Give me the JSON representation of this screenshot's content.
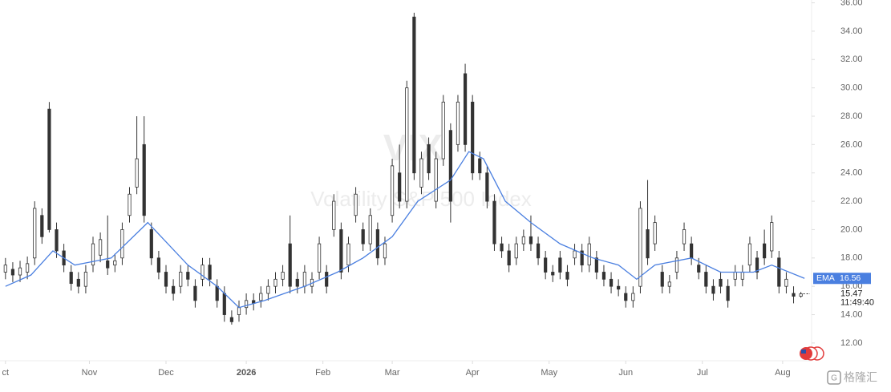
{
  "chart_data": {
    "type": "candlestick",
    "watermark_symbol": "VIX",
    "watermark_name": "Volatility S&P 500 Index",
    "xlim": [
      -1.5,
      220.5
    ],
    "ylim": [
      10.75,
      36.2
    ],
    "xticks": [
      {
        "value": 0,
        "label": "ct"
      },
      {
        "value": 23,
        "label": "Nov"
      },
      {
        "value": 44,
        "label": "Dec"
      },
      {
        "value": 66,
        "label": "2026"
      },
      {
        "value": 87,
        "label": "Feb"
      },
      {
        "value": 106,
        "label": "Mar"
      },
      {
        "value": 128,
        "label": "Apr"
      },
      {
        "value": 149,
        "label": "May"
      },
      {
        "value": 170,
        "label": "Jun"
      },
      {
        "value": 191,
        "label": "Jul"
      },
      {
        "value": 213,
        "label": "Aug"
      }
    ],
    "yticks": [
      {
        "value": 12,
        "label": "12.00"
      },
      {
        "value": 14,
        "label": "14.00"
      },
      {
        "value": 16,
        "label": "16.00"
      },
      {
        "value": 18,
        "label": "18.00"
      },
      {
        "value": 20,
        "label": "20.00"
      },
      {
        "value": 22,
        "label": "22.00"
      },
      {
        "value": 24,
        "label": "24.00"
      },
      {
        "value": 26,
        "label": "26.00"
      },
      {
        "value": 28,
        "label": "28.00"
      },
      {
        "value": 30,
        "label": "30.00"
      },
      {
        "value": 32,
        "label": "32.00"
      },
      {
        "value": 34,
        "label": "34.00"
      },
      {
        "value": 36,
        "label": "36.00"
      }
    ],
    "up_color": "#ffffff",
    "down_color": "#333333",
    "outline_color": "#333333",
    "x": [
      0,
      2,
      4,
      6,
      8,
      10,
      12,
      14,
      16,
      18,
      20,
      22,
      24,
      26,
      28,
      30,
      32,
      34,
      36,
      38,
      40,
      42,
      44,
      46,
      48,
      50,
      52,
      54,
      56,
      58,
      60,
      62,
      64,
      66,
      68,
      70,
      72,
      74,
      76,
      78,
      80,
      82,
      84,
      86,
      88,
      90,
      92,
      94,
      96,
      98,
      100,
      102,
      104,
      106,
      108,
      110,
      112,
      114,
      116,
      118,
      120,
      122,
      124,
      126,
      128,
      130,
      132,
      134,
      136,
      138,
      140,
      142,
      144,
      146,
      148,
      150,
      152,
      154,
      156,
      158,
      160,
      162,
      164,
      166,
      168,
      170,
      172,
      174,
      176,
      178,
      180,
      182,
      184,
      186,
      188,
      190,
      192,
      194,
      196,
      198,
      200,
      202,
      204,
      206,
      208,
      210,
      212,
      214,
      216,
      218
    ],
    "open": [
      17,
      17.2,
      16.8,
      17,
      18,
      21,
      28.5,
      20,
      18.5,
      17,
      16.5,
      16,
      17.5,
      18.2,
      17.8,
      17.5,
      18,
      21,
      23,
      26,
      20,
      18,
      17,
      16,
      16,
      17,
      16,
      16.5,
      17.5,
      16,
      15.5,
      13.8,
      14,
      14.5,
      15,
      15,
      15.5,
      16,
      16.5,
      19,
      16.5,
      16,
      16,
      17,
      17,
      20,
      20,
      17.5,
      21,
      20,
      19,
      20,
      18,
      21,
      24,
      22,
      35,
      23,
      26,
      22,
      25,
      27,
      26,
      31,
      29,
      25,
      24,
      22,
      19,
      18.5,
      18,
      19,
      19.5,
      19,
      18,
      17,
      18,
      17,
      18,
      18.5,
      17.5,
      18,
      17,
      16.5,
      16,
      15.5,
      15,
      16,
      20,
      19,
      17,
      16,
      17,
      19,
      19,
      17.5,
      17,
      16,
      16.5,
      16,
      16.5,
      16.5,
      17.5,
      18,
      19,
      18.5,
      18,
      16,
      15.5,
      15.3
    ],
    "high": [
      18,
      17.7,
      17.8,
      18.1,
      22,
      21.5,
      29,
      20.5,
      19,
      17.5,
      17,
      17.5,
      19.5,
      19.8,
      21,
      18.3,
      20.5,
      23,
      28,
      28,
      20.5,
      18.5,
      17.5,
      16.5,
      17.5,
      17.5,
      16.5,
      18,
      18,
      16.5,
      16,
      14.3,
      15,
      15.5,
      15.5,
      16,
      16.5,
      17,
      17.5,
      21,
      17,
      17.5,
      17,
      19.5,
      17.5,
      22.5,
      20.5,
      19.5,
      23,
      20.5,
      21.5,
      20.5,
      19.5,
      25,
      26,
      30.5,
      35.3,
      25.5,
      26.5,
      25.5,
      29.5,
      27.5,
      29.5,
      31.7,
      29.5,
      25.5,
      24.5,
      22.5,
      19.5,
      19,
      19.5,
      20,
      21,
      19.5,
      18.5,
      17.5,
      18.5,
      17.5,
      19,
      19,
      19.5,
      18.5,
      17.5,
      17,
      16.5,
      16,
      16,
      22,
      23.5,
      21,
      17.5,
      16.8,
      18.5,
      20.5,
      19.5,
      18,
      17.5,
      16.5,
      17,
      16.5,
      17.5,
      17.5,
      19.5,
      18.5,
      20,
      21,
      18.5,
      17,
      16,
      15.6
    ],
    "low": [
      16.5,
      16.3,
      16.3,
      16.5,
      17.5,
      19,
      19.8,
      18,
      17,
      15.7,
      15.5,
      15.5,
      17,
      17.7,
      16.8,
      17,
      17.5,
      20.5,
      22.5,
      20.5,
      17.5,
      16.5,
      15.5,
      15,
      15.5,
      16,
      14.5,
      16,
      16,
      14.5,
      13.5,
      13.3,
      13.5,
      14,
      14.3,
      14.5,
      15,
      15.5,
      16,
      15.5,
      15.5,
      15.5,
      15.5,
      16.5,
      15.5,
      19.5,
      16.5,
      17,
      20.5,
      18.5,
      18.5,
      17.5,
      17.5,
      20.5,
      21.5,
      21.5,
      23.5,
      22.5,
      23.5,
      21.5,
      24.5,
      20.5,
      25.5,
      25.5,
      23.5,
      23.5,
      21.5,
      18.5,
      18,
      17,
      17.5,
      18.5,
      18.5,
      17.5,
      16.5,
      16.3,
      16.5,
      16,
      17.5,
      17,
      17,
      16.5,
      16,
      15.5,
      15.3,
      14.5,
      14.5,
      15.5,
      17.5,
      18.5,
      15.5,
      15.5,
      16.5,
      18.5,
      17.5,
      16.5,
      15.5,
      15,
      15.5,
      14.5,
      16,
      16,
      17,
      16.5,
      17.5,
      18,
      15.5,
      15.5,
      14.8,
      15.2
    ],
    "close": [
      17.5,
      16.8,
      17.3,
      17.6,
      21.5,
      19.5,
      20,
      18.5,
      17.5,
      16.2,
      16,
      17,
      19,
      19.3,
      17.3,
      17.8,
      20,
      22.5,
      25,
      21,
      18,
      17,
      16,
      15.5,
      17,
      16.5,
      15,
      17.5,
      16.5,
      15,
      14,
      13.5,
      14.5,
      15,
      14.8,
      15.5,
      16,
      16.5,
      17,
      16,
      16,
      17,
      16.5,
      19,
      16,
      22,
      17,
      19,
      22.5,
      19,
      21,
      18,
      19,
      24.5,
      22,
      30,
      24,
      25,
      24,
      25,
      29,
      22,
      29,
      26,
      24,
      24,
      22,
      19,
      18.5,
      17.5,
      19,
      19.5,
      19,
      18,
      17,
      16.8,
      17,
      16.5,
      18.5,
      17.5,
      19,
      17,
      16.5,
      16,
      15.8,
      15,
      15.5,
      21.5,
      18,
      20.5,
      16,
      16.3,
      18,
      20,
      18,
      17,
      16,
      15.5,
      16,
      15,
      17,
      17,
      19,
      17,
      18,
      20.5,
      16,
      16.5,
      15.3,
      15.47
    ],
    "ema": {
      "name": "EMA",
      "color": "#4a7fe0",
      "x": [
        0,
        7,
        13,
        19,
        29,
        39,
        50,
        58,
        64,
        71,
        82,
        91,
        98,
        106,
        113,
        122,
        127,
        131,
        137,
        144,
        152,
        161,
        168,
        173,
        178,
        188,
        196,
        205,
        210,
        219
      ],
      "values": [
        16,
        16.8,
        18.5,
        17.5,
        18,
        20.5,
        17.5,
        16,
        14.5,
        15,
        16,
        17,
        18,
        19.5,
        22,
        23.5,
        25.5,
        25,
        22,
        20.5,
        19,
        18,
        17.5,
        16.5,
        17.5,
        18,
        17,
        17,
        17.5,
        16.56
      ]
    },
    "last_price": {
      "value": 15.47,
      "label": "15.47"
    },
    "last_time": "11:49:40"
  }
}
